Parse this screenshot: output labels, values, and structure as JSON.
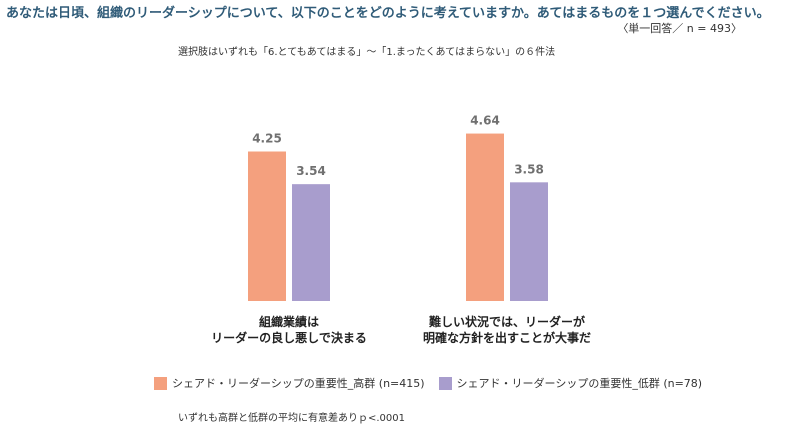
{
  "question": "あなたは日頃、組織のリーダーシップについて、以下のことをどのように考えていますか。あてはまるものを１つ選んでください。",
  "answer_note": "〈単一回答／ n = 493〉",
  "scale_note": "選択肢はいずれも「6.とてもあてはまる」〜「1.まったくあてはまらない」の６件法",
  "footnote": "いずれも高群と低群の平均に有意差ありｐ<.0001",
  "colors": {
    "high": "#f4a07e",
    "low": "#a89dcd",
    "question": "#2f5b78"
  },
  "chart_data": {
    "type": "bar",
    "categories": [
      [
        "組織業績は",
        "リーダーの良し悪しで決まる"
      ],
      [
        "難しい状況では、リーダーが",
        "明確な方針を出すことが大事だ"
      ]
    ],
    "series": [
      {
        "name": "シェアド・リーダーシップの重要性_高群 (n=415)",
        "values": [
          4.25,
          4.64
        ]
      },
      {
        "name": "シェアド・リーダーシップの重要性_低群 (n=78)",
        "values": [
          3.54,
          3.58
        ]
      }
    ],
    "value_labels": [
      [
        "4.25",
        "4.64"
      ],
      [
        "3.54",
        "3.58"
      ]
    ],
    "ylim": [
      1,
      6
    ],
    "grid": false,
    "legend_position": "bottom"
  }
}
